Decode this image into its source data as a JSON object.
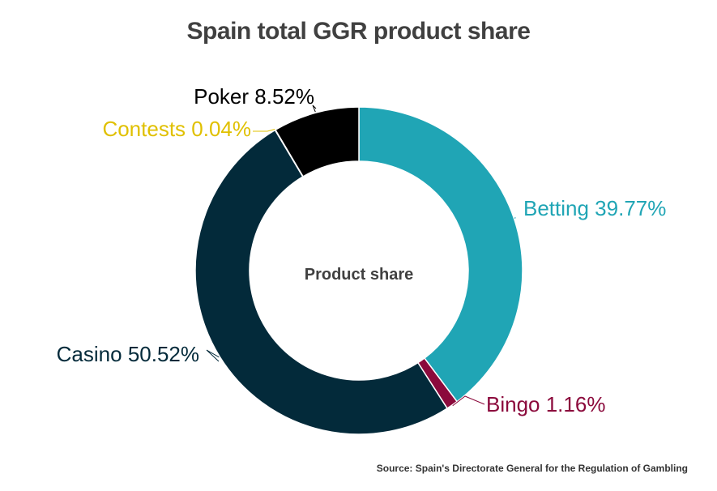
{
  "chart_data": {
    "type": "pie",
    "title": "Spain total GGR product share",
    "center_label": "Product share",
    "source": "Source: Spain's Directorate General for the Regulation of Gambling",
    "slices": [
      {
        "name": "Betting",
        "value": 39.77,
        "label": "Betting 39.77%",
        "color": "#20a5b5",
        "label_color": "#20a5b5"
      },
      {
        "name": "Bingo",
        "value": 1.16,
        "label": "Bingo 1.16%",
        "color": "#8b0a3c",
        "label_color": "#8b0a3c"
      },
      {
        "name": "Casino",
        "value": 50.52,
        "label": "Casino 50.52%",
        "color": "#032a3a",
        "label_color": "#032a3a"
      },
      {
        "name": "Contests",
        "value": 0.04,
        "label": "Contests 0.04%",
        "color": "#e8c800",
        "label_color": "#e0c000"
      },
      {
        "name": "Poker",
        "value": 8.52,
        "label": "Poker 8.52%",
        "color": "#000000",
        "label_color": "#000000"
      }
    ]
  }
}
